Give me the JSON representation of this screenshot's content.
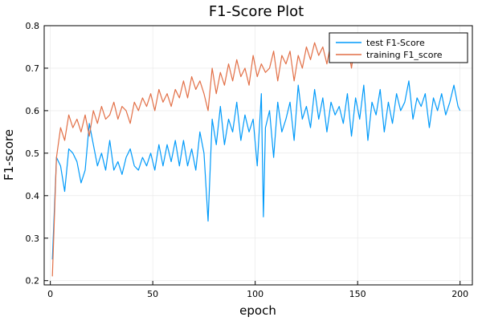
{
  "chart_data": {
    "type": "line",
    "title": "F1-Score Plot",
    "xlabel": "epoch",
    "ylabel": "F1-score",
    "xlim": [
      -3,
      206
    ],
    "ylim": [
      0.19,
      0.8
    ],
    "xticks": [
      0,
      50,
      100,
      150,
      200
    ],
    "yticks": [
      0.2,
      0.3,
      0.4,
      0.5,
      0.6,
      0.7,
      0.8
    ],
    "grid": true,
    "legend_position": "top-right",
    "series": [
      {
        "name": "test F1-Score",
        "color": "#009AFA",
        "x": [
          1,
          3,
          5,
          7,
          9,
          11,
          13,
          15,
          17,
          19,
          21,
          23,
          25,
          27,
          29,
          31,
          33,
          35,
          37,
          39,
          41,
          43,
          45,
          47,
          49,
          51,
          53,
          55,
          57,
          59,
          61,
          63,
          65,
          67,
          69,
          71,
          73,
          75,
          77,
          79,
          81,
          83,
          85,
          87,
          89,
          91,
          93,
          95,
          97,
          99,
          101,
          103,
          104,
          105,
          107,
          109,
          111,
          113,
          115,
          117,
          119,
          121,
          123,
          125,
          127,
          129,
          131,
          133,
          135,
          137,
          139,
          141,
          143,
          145,
          147,
          149,
          151,
          153,
          155,
          157,
          159,
          161,
          163,
          165,
          167,
          169,
          171,
          173,
          175,
          177,
          179,
          181,
          183,
          185,
          187,
          189,
          191,
          193,
          195,
          197,
          199,
          200
        ],
        "y": [
          0.25,
          0.49,
          0.47,
          0.41,
          0.51,
          0.5,
          0.48,
          0.43,
          0.46,
          0.57,
          0.52,
          0.47,
          0.5,
          0.46,
          0.53,
          0.46,
          0.48,
          0.45,
          0.49,
          0.51,
          0.47,
          0.46,
          0.49,
          0.47,
          0.5,
          0.46,
          0.52,
          0.47,
          0.52,
          0.48,
          0.53,
          0.47,
          0.53,
          0.47,
          0.51,
          0.46,
          0.55,
          0.5,
          0.34,
          0.58,
          0.52,
          0.61,
          0.52,
          0.58,
          0.55,
          0.62,
          0.53,
          0.59,
          0.55,
          0.58,
          0.47,
          0.64,
          0.35,
          0.56,
          0.6,
          0.49,
          0.62,
          0.55,
          0.58,
          0.62,
          0.53,
          0.66,
          0.58,
          0.61,
          0.56,
          0.65,
          0.58,
          0.63,
          0.55,
          0.62,
          0.59,
          0.61,
          0.57,
          0.64,
          0.54,
          0.63,
          0.58,
          0.66,
          0.53,
          0.62,
          0.59,
          0.65,
          0.55,
          0.62,
          0.57,
          0.64,
          0.6,
          0.62,
          0.67,
          0.58,
          0.63,
          0.61,
          0.64,
          0.56,
          0.63,
          0.6,
          0.64,
          0.59,
          0.62,
          0.66,
          0.61,
          0.6
        ]
      },
      {
        "name": "training F1_score",
        "color": "#E26F46",
        "x": [
          1,
          3,
          5,
          7,
          9,
          11,
          13,
          15,
          17,
          19,
          21,
          23,
          25,
          27,
          29,
          31,
          33,
          35,
          37,
          39,
          41,
          43,
          45,
          47,
          49,
          51,
          53,
          55,
          57,
          59,
          61,
          63,
          65,
          67,
          69,
          71,
          73,
          75,
          77,
          79,
          81,
          83,
          85,
          87,
          89,
          91,
          93,
          95,
          97,
          99,
          101,
          103,
          105,
          107,
          109,
          111,
          113,
          115,
          117,
          119,
          121,
          123,
          125,
          127,
          129,
          131,
          133,
          135,
          137,
          139,
          141,
          143,
          145,
          147,
          149,
          151,
          153,
          155,
          157,
          159,
          161,
          163,
          165,
          167,
          169,
          171,
          173,
          175,
          177,
          179,
          181,
          183,
          185,
          187,
          189,
          191,
          193,
          195,
          197,
          199,
          200
        ],
        "y": [
          0.21,
          0.49,
          0.56,
          0.53,
          0.59,
          0.56,
          0.58,
          0.55,
          0.59,
          0.54,
          0.6,
          0.57,
          0.61,
          0.58,
          0.59,
          0.62,
          0.58,
          0.61,
          0.6,
          0.57,
          0.62,
          0.6,
          0.63,
          0.61,
          0.64,
          0.6,
          0.65,
          0.62,
          0.64,
          0.61,
          0.65,
          0.63,
          0.67,
          0.63,
          0.68,
          0.65,
          0.67,
          0.64,
          0.6,
          0.7,
          0.64,
          0.69,
          0.66,
          0.71,
          0.67,
          0.72,
          0.68,
          0.7,
          0.66,
          0.73,
          0.68,
          0.71,
          0.69,
          0.7,
          0.74,
          0.67,
          0.73,
          0.71,
          0.74,
          0.67,
          0.73,
          0.7,
          0.75,
          0.72,
          0.76,
          0.73,
          0.75,
          0.71,
          0.76,
          0.72,
          0.77,
          0.73,
          0.76,
          0.7,
          0.77,
          0.73,
          0.76,
          0.74,
          0.77,
          0.72,
          0.78,
          0.74,
          0.77,
          0.75,
          0.78,
          0.73,
          0.77,
          0.76,
          0.78,
          0.75,
          0.77,
          0.74,
          0.78,
          0.76,
          0.77,
          0.76,
          0.78,
          0.77,
          0.77,
          0.78,
          0.73
        ]
      }
    ]
  }
}
